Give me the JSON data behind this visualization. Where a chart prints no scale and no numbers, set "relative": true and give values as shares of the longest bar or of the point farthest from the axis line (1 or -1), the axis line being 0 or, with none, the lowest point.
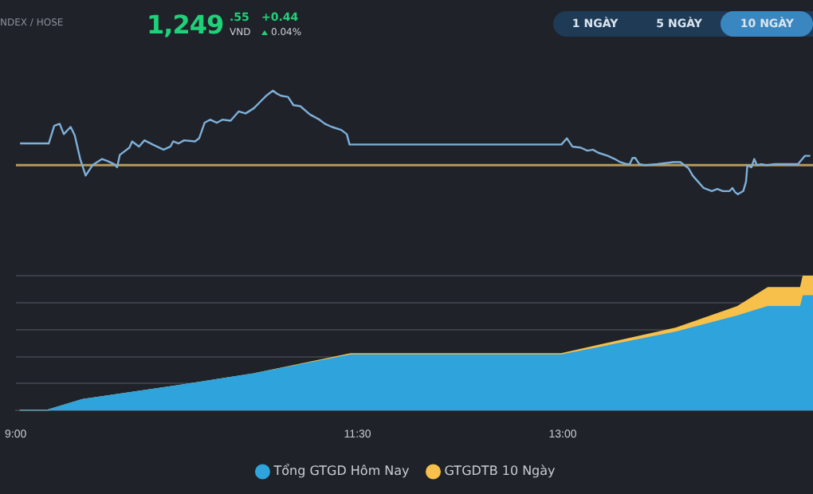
{
  "chart_data": [
    {
      "type": "line",
      "relative": true,
      "tick_labels": false,
      "legend": false,
      "marker": "none",
      "xlim": [
        9,
        14.83
      ],
      "annotations": [
        "NDEX / HOSE",
        "1,249",
        ".55",
        "VND",
        "+0.44",
        "0.04%",
        "1 NGÀY",
        "5 NGÀY",
        "10 NGÀY"
      ],
      "ref_lines": [
        {
          "axis": "y",
          "value": 0.28,
          "color": "#b59a5a"
        }
      ],
      "x": [
        9.03,
        9.24,
        9.28,
        9.32,
        9.35,
        9.4,
        9.43,
        9.47,
        9.51,
        9.56,
        9.63,
        9.67,
        9.72,
        9.74,
        9.76,
        9.83,
        9.85,
        9.9,
        9.94,
        10.0,
        10.08,
        10.13,
        10.15,
        10.19,
        10.23,
        10.31,
        10.34,
        10.38,
        10.42,
        10.47,
        10.51,
        10.57,
        10.63,
        10.68,
        10.74,
        10.8,
        10.83,
        10.88,
        10.91,
        10.94,
        10.99,
        11.03,
        11.08,
        11.15,
        11.22,
        11.26,
        11.31,
        11.38,
        11.42,
        11.44,
        11.5,
        12.99,
        13.03,
        13.07,
        13.13,
        13.18,
        13.22,
        13.26,
        13.33,
        13.38,
        13.42,
        13.47,
        13.49,
        13.51,
        13.53,
        13.56,
        13.6,
        13.69,
        13.81,
        13.86,
        13.92,
        13.95,
        13.99,
        14.03,
        14.09,
        14.13,
        14.17,
        14.22,
        14.24,
        14.26,
        14.28,
        14.32,
        14.34,
        14.35,
        14.38,
        14.4,
        14.42,
        14.45,
        14.49,
        14.55,
        14.72,
        14.77,
        14.81
      ],
      "series": [
        {
          "color": "#7fb0d8",
          "values": [
            0.49,
            0.49,
            0.66,
            0.68,
            0.58,
            0.65,
            0.57,
            0.34,
            0.18,
            0.28,
            0.34,
            0.32,
            0.29,
            0.26,
            0.38,
            0.45,
            0.51,
            0.46,
            0.52,
            0.48,
            0.43,
            0.46,
            0.51,
            0.49,
            0.52,
            0.51,
            0.54,
            0.69,
            0.72,
            0.69,
            0.72,
            0.71,
            0.8,
            0.78,
            0.83,
            0.91,
            0.95,
            1.0,
            0.97,
            0.95,
            0.94,
            0.86,
            0.85,
            0.77,
            0.72,
            0.68,
            0.65,
            0.62,
            0.58,
            0.48,
            0.48,
            0.48,
            0.54,
            0.46,
            0.45,
            0.42,
            0.43,
            0.4,
            0.37,
            0.34,
            0.31,
            0.29,
            0.29,
            0.35,
            0.35,
            0.29,
            0.28,
            0.29,
            0.31,
            0.31,
            0.25,
            0.18,
            0.12,
            0.06,
            0.03,
            0.05,
            0.03,
            0.03,
            0.06,
            0.02,
            0.0,
            0.03,
            0.12,
            0.28,
            0.26,
            0.34,
            0.28,
            0.29,
            0.28,
            0.29,
            0.29,
            0.37,
            0.37
          ]
        }
      ]
    },
    {
      "type": "area",
      "relative": true,
      "grid": "y",
      "tick_labels": "x",
      "legend": "bottom",
      "marker": "none",
      "xlim": [
        9,
        14.83
      ],
      "xticks": [
        {
          "value": 9,
          "label": "9:00"
        },
        {
          "value": 11.5,
          "label": "11:30"
        },
        {
          "value": 13,
          "label": "13:00"
        }
      ],
      "x": [
        9.03,
        9.23,
        9.49,
        10.17,
        10.74,
        11.45,
        11.5,
        12.99,
        13.83,
        14.28,
        14.5,
        14.74,
        14.76,
        14.83
      ],
      "series": [
        {
          "name": "Tổng GTGD Hôm Nay",
          "color": "#2fa3dc",
          "values": [
            0,
            0,
            0.08,
            0.18,
            0.27,
            0.41,
            0.41,
            0.41,
            0.58,
            0.7,
            0.77,
            0.77,
            0.85,
            0.85
          ]
        },
        {
          "name": "GTGDTB 10 Ngày",
          "color": "#f7c04a",
          "values": [
            0,
            0,
            0.08,
            0.18,
            0.27,
            0.42,
            0.42,
            0.42,
            0.61,
            0.77,
            0.91,
            0.91,
            1.0,
            1.0
          ]
        }
      ]
    }
  ]
}
